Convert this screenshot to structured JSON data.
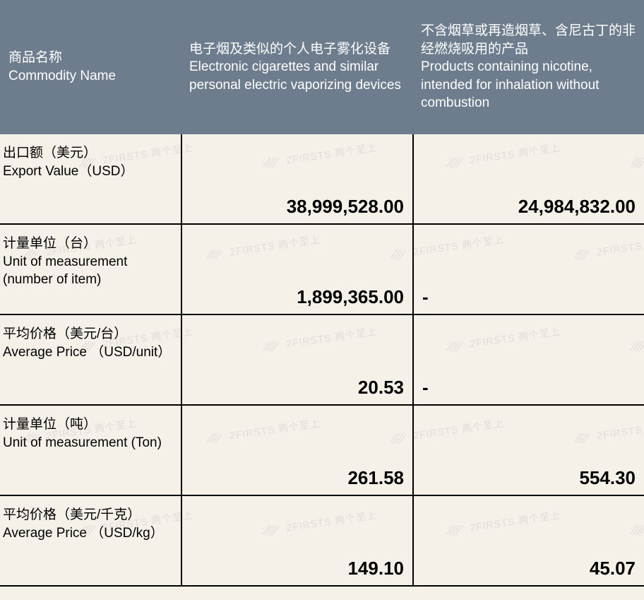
{
  "colors": {
    "header_bg": "#6d7d8e",
    "header_text": "#ffffff",
    "body_bg": "#f5f0e8",
    "border": "#000000",
    "text": "#000000",
    "watermark": "#8a8a8a"
  },
  "watermark": {
    "text": "2FIRSTS 两个至上"
  },
  "header": {
    "label": {
      "cn": "商品名称",
      "en": "Commodity Name"
    },
    "col_a": {
      "cn": "电子烟及类似的个人电子雾化设备",
      "en": "Electronic cigarettes and similar personal electric vaporizing devices"
    },
    "col_b": {
      "cn": "不含烟草或再造烟草、含尼古丁的非经燃烧吸用的产品",
      "en": "Products containing nicotine, intended for inhalation without combustion"
    }
  },
  "rows": [
    {
      "label_cn": "出口额（美元）",
      "label_en": " Export Value（USD）",
      "a": "38,999,528.00",
      "b": "24,984,832.00",
      "b_dash": false
    },
    {
      "label_cn": "计量单位（台）",
      "label_en": "Unit of measurement (number of item)",
      "a": "1,899,365.00",
      "b": "-",
      "b_dash": true
    },
    {
      "label_cn": "平均价格（美元/台）",
      "label_en": "Average Price （USD/unit）",
      "a": "20.53",
      "b": "-",
      "b_dash": true
    },
    {
      "label_cn": "计量单位（吨）",
      "label_en": "Unit of measurement (Ton)",
      "a": "261.58",
      "b": "554.30",
      "b_dash": false
    },
    {
      "label_cn": "平均价格（美元/千克）",
      "label_en": "Average Price （USD/kg）",
      "a": "149.10",
      "b": "45.07",
      "b_dash": false
    }
  ]
}
